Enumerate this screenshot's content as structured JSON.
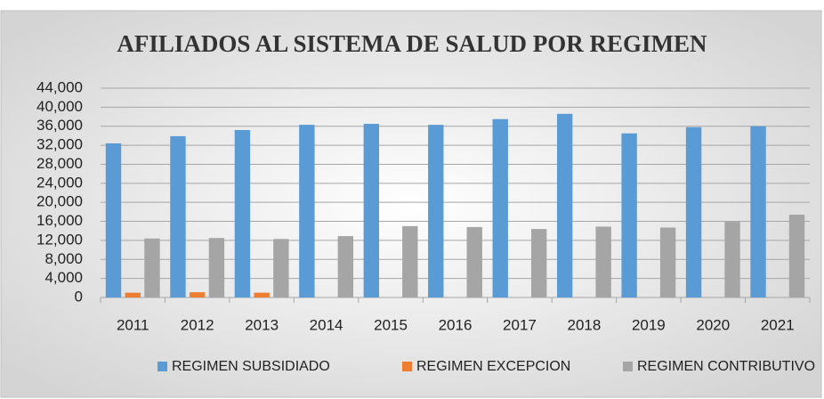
{
  "chart_data": {
    "type": "bar",
    "title": "AFILIADOS AL SISTEMA DE SALUD POR REGIMEN",
    "categories": [
      "2011",
      "2012",
      "2013",
      "2014",
      "2015",
      "2016",
      "2017",
      "2018",
      "2019",
      "2020",
      "2021"
    ],
    "series": [
      {
        "name": "REGIMEN SUBSIDIADO",
        "color": "#5b9bd5",
        "values": [
          32400,
          33900,
          35200,
          36300,
          36500,
          36300,
          37500,
          38600,
          34500,
          35800,
          36000
        ]
      },
      {
        "name": "REGIMEN EXCEPCION",
        "color": "#ed7d31",
        "values": [
          1000,
          1100,
          1000,
          0,
          0,
          0,
          0,
          0,
          0,
          0,
          0
        ]
      },
      {
        "name": "REGIMEN CONTRIBUTIVO",
        "color": "#a5a5a5",
        "values": [
          12400,
          12500,
          12300,
          12900,
          15000,
          14800,
          14400,
          14900,
          14700,
          15900,
          17400
        ]
      }
    ],
    "ylim": [
      0,
      44000
    ],
    "yticks": [
      0,
      {
        "value": 4000,
        "label": "4,000"
      },
      {
        "value": 8000,
        "label": "8,000"
      },
      {
        "value": 12000,
        "label": "12,000"
      },
      {
        "value": 16000,
        "label": "16,000"
      },
      {
        "value": 20000,
        "label": "20,000"
      },
      {
        "value": 24000,
        "label": "24,000"
      },
      {
        "value": 28000,
        "label": "28,000"
      },
      {
        "value": 32000,
        "label": "32,000"
      },
      {
        "value": 36000,
        "label": "36,000"
      },
      {
        "value": 40000,
        "label": "40,000"
      },
      {
        "value": 44000,
        "label": "44,000"
      }
    ],
    "grid": true,
    "legend": "bottom"
  }
}
